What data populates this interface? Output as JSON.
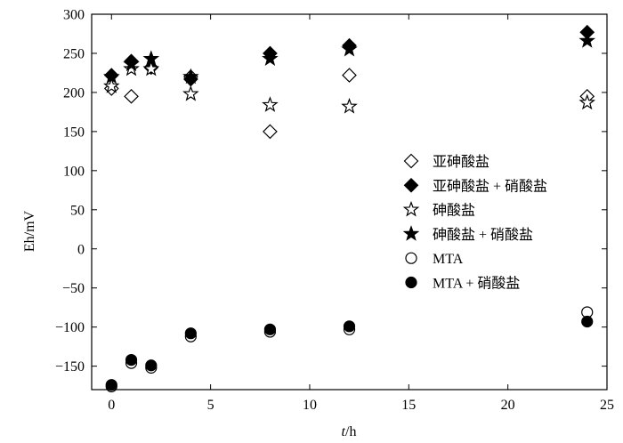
{
  "chart_data": {
    "type": "scatter",
    "title": "",
    "xlabel_italic": "t",
    "xlabel_rest": "/h",
    "ylabel": "Eh/mV",
    "xlim": [
      -1,
      25
    ],
    "ylim": [
      -180,
      300
    ],
    "xticks": [
      0,
      5,
      10,
      15,
      20,
      25
    ],
    "yticks": [
      -150,
      -100,
      -50,
      0,
      50,
      100,
      150,
      200,
      250,
      300
    ],
    "grid": false,
    "legend_position": "right",
    "colors": {
      "axis": "#000000",
      "marker_fill": "#000000",
      "marker_open": "#ffffff"
    },
    "series": [
      {
        "name": "亚砷酸盐",
        "marker": "diamond-open",
        "points": [
          [
            0,
            205
          ],
          [
            1,
            195
          ],
          [
            2,
            232
          ],
          [
            4,
            220
          ],
          [
            8,
            150
          ],
          [
            12,
            222
          ],
          [
            24,
            195
          ]
        ]
      },
      {
        "name": "亚砷酸盐 + 硝酸盐",
        "marker": "diamond-filled",
        "points": [
          [
            0,
            222
          ],
          [
            1,
            240
          ],
          [
            2,
            232
          ],
          [
            4,
            217
          ],
          [
            8,
            250
          ],
          [
            12,
            260
          ],
          [
            24,
            277
          ]
        ]
      },
      {
        "name": "砷酸盐",
        "marker": "star-open",
        "points": [
          [
            0,
            208
          ],
          [
            1,
            230
          ],
          [
            2,
            230
          ],
          [
            4,
            198
          ],
          [
            8,
            184
          ],
          [
            12,
            182
          ],
          [
            24,
            187
          ]
        ]
      },
      {
        "name": "砷酸盐 + 硝酸盐",
        "marker": "star-filled",
        "points": [
          [
            0,
            220
          ],
          [
            1,
            236
          ],
          [
            2,
            243
          ],
          [
            4,
            220
          ],
          [
            8,
            243
          ],
          [
            12,
            255
          ],
          [
            24,
            266
          ]
        ]
      },
      {
        "name": "MTA",
        "marker": "circle-open",
        "points": [
          [
            0,
            -176
          ],
          [
            1,
            -146
          ],
          [
            2,
            -152
          ],
          [
            4,
            -112
          ],
          [
            8,
            -106
          ],
          [
            12,
            -103
          ],
          [
            24,
            -81
          ]
        ]
      },
      {
        "name": "MTA + 硝酸盐",
        "marker": "circle-filled",
        "points": [
          [
            0,
            -174
          ],
          [
            1,
            -142
          ],
          [
            2,
            -149
          ],
          [
            4,
            -108
          ],
          [
            8,
            -103
          ],
          [
            12,
            -99
          ],
          [
            24,
            -93
          ]
        ]
      }
    ]
  }
}
